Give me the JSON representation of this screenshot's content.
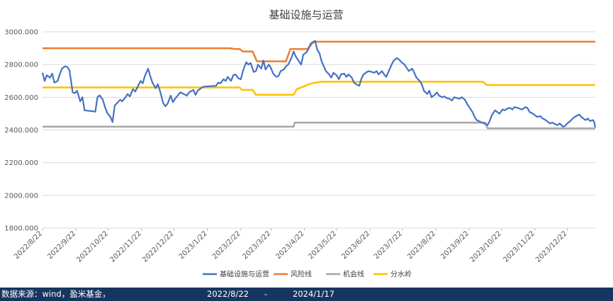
{
  "chart_data": {
    "type": "line",
    "title": "基础设施与运营",
    "ylim": [
      1800,
      3000
    ],
    "yticks": [
      "1800.000",
      "2000.000",
      "2200.000",
      "2400.000",
      "2600.000",
      "2800.000",
      "3000.000"
    ],
    "xticks": [
      "2022/8/22",
      "2022/9/22",
      "2022/10/22",
      "2022/11/22",
      "2022/12/22",
      "2023/1/22",
      "2023/2/22",
      "2023/3/22",
      "2023/4/22",
      "2023/5/22",
      "2023/6/22",
      "2023/7/22",
      "2023/8/22",
      "2023/9/22",
      "2023/10/22",
      "2023/11/22",
      "2023/12/22"
    ],
    "grid": true,
    "legend_position": "bottom",
    "series": [
      {
        "name": "基础设施与运营",
        "color": "#4472c4",
        "points": [
          [
            "2022-08-22",
            2750
          ],
          [
            "2022-08-24",
            2700
          ],
          [
            "2022-08-26",
            2735
          ],
          [
            "2022-08-29",
            2720
          ],
          [
            "2022-08-31",
            2745
          ],
          [
            "2022-09-02",
            2690
          ],
          [
            "2022-09-05",
            2700
          ],
          [
            "2022-09-07",
            2740
          ],
          [
            "2022-09-09",
            2775
          ],
          [
            "2022-09-12",
            2790
          ],
          [
            "2022-09-14",
            2785
          ],
          [
            "2022-09-16",
            2765
          ],
          [
            "2022-09-19",
            2630
          ],
          [
            "2022-09-21",
            2625
          ],
          [
            "2022-09-23",
            2640
          ],
          [
            "2022-09-26",
            2575
          ],
          [
            "2022-09-28",
            2600
          ],
          [
            "2022-09-30",
            2520
          ],
          [
            "2022-10-03",
            2518
          ],
          [
            "2022-10-07",
            2515
          ],
          [
            "2022-10-10",
            2512
          ],
          [
            "2022-10-12",
            2600
          ],
          [
            "2022-10-14",
            2612
          ],
          [
            "2022-10-17",
            2585
          ],
          [
            "2022-10-19",
            2540
          ],
          [
            "2022-10-21",
            2505
          ],
          [
            "2022-10-24",
            2480
          ],
          [
            "2022-10-26",
            2448
          ],
          [
            "2022-10-28",
            2550
          ],
          [
            "2022-10-31",
            2570
          ],
          [
            "2022-11-02",
            2585
          ],
          [
            "2022-11-04",
            2575
          ],
          [
            "2022-11-07",
            2600
          ],
          [
            "2022-11-09",
            2620
          ],
          [
            "2022-11-11",
            2605
          ],
          [
            "2022-11-14",
            2650
          ],
          [
            "2022-11-16",
            2635
          ],
          [
            "2022-11-18",
            2660
          ],
          [
            "2022-11-21",
            2700
          ],
          [
            "2022-11-23",
            2685
          ],
          [
            "2022-11-25",
            2730
          ],
          [
            "2022-11-28",
            2775
          ],
          [
            "2022-11-30",
            2730
          ],
          [
            "2022-12-02",
            2690
          ],
          [
            "2022-12-05",
            2655
          ],
          [
            "2022-12-07",
            2680
          ],
          [
            "2022-12-09",
            2640
          ],
          [
            "2022-12-12",
            2565
          ],
          [
            "2022-12-14",
            2545
          ],
          [
            "2022-12-16",
            2560
          ],
          [
            "2022-12-19",
            2610
          ],
          [
            "2022-12-21",
            2570
          ],
          [
            "2022-12-23",
            2590
          ],
          [
            "2022-12-26",
            2615
          ],
          [
            "2022-12-28",
            2630
          ],
          [
            "2023-01-03",
            2610
          ],
          [
            "2023-01-05",
            2630
          ],
          [
            "2023-01-09",
            2645
          ],
          [
            "2023-01-11",
            2615
          ],
          [
            "2023-01-13",
            2640
          ],
          [
            "2023-01-17",
            2660
          ],
          [
            "2023-01-19",
            2665
          ],
          [
            "2023-01-30",
            2670
          ],
          [
            "2023-02-01",
            2690
          ],
          [
            "2023-02-03",
            2685
          ],
          [
            "2023-02-06",
            2710
          ],
          [
            "2023-02-08",
            2700
          ],
          [
            "2023-02-10",
            2725
          ],
          [
            "2023-02-13",
            2700
          ],
          [
            "2023-02-15",
            2735
          ],
          [
            "2023-02-17",
            2740
          ],
          [
            "2023-02-20",
            2715
          ],
          [
            "2023-02-22",
            2710
          ],
          [
            "2023-02-24",
            2760
          ],
          [
            "2023-02-27",
            2815
          ],
          [
            "2023-03-01",
            2800
          ],
          [
            "2023-03-03",
            2810
          ],
          [
            "2023-03-06",
            2755
          ],
          [
            "2023-03-08",
            2760
          ],
          [
            "2023-03-10",
            2800
          ],
          [
            "2023-03-13",
            2775
          ],
          [
            "2023-03-15",
            2825
          ],
          [
            "2023-03-17",
            2770
          ],
          [
            "2023-03-20",
            2800
          ],
          [
            "2023-03-22",
            2780
          ],
          [
            "2023-03-24",
            2745
          ],
          [
            "2023-03-27",
            2725
          ],
          [
            "2023-03-29",
            2730
          ],
          [
            "2023-03-31",
            2760
          ],
          [
            "2023-04-03",
            2770
          ],
          [
            "2023-04-05",
            2790
          ],
          [
            "2023-04-07",
            2800
          ],
          [
            "2023-04-10",
            2840
          ],
          [
            "2023-04-12",
            2880
          ],
          [
            "2023-04-14",
            2850
          ],
          [
            "2023-04-17",
            2820
          ],
          [
            "2023-04-19",
            2800
          ],
          [
            "2023-04-21",
            2860
          ],
          [
            "2023-04-24",
            2875
          ],
          [
            "2023-04-26",
            2900
          ],
          [
            "2023-04-28",
            2930
          ],
          [
            "2023-05-02",
            2945
          ],
          [
            "2023-05-04",
            2890
          ],
          [
            "2023-05-06",
            2870
          ],
          [
            "2023-05-08",
            2820
          ],
          [
            "2023-05-10",
            2790
          ],
          [
            "2023-05-12",
            2760
          ],
          [
            "2023-05-15",
            2740
          ],
          [
            "2023-05-17",
            2720
          ],
          [
            "2023-05-19",
            2750
          ],
          [
            "2023-05-22",
            2735
          ],
          [
            "2023-05-24",
            2710
          ],
          [
            "2023-05-26",
            2740
          ],
          [
            "2023-05-29",
            2745
          ],
          [
            "2023-05-31",
            2725
          ],
          [
            "2023-06-02",
            2740
          ],
          [
            "2023-06-05",
            2720
          ],
          [
            "2023-06-07",
            2690
          ],
          [
            "2023-06-09",
            2680
          ],
          [
            "2023-06-12",
            2670
          ],
          [
            "2023-06-14",
            2715
          ],
          [
            "2023-06-16",
            2740
          ],
          [
            "2023-06-19",
            2755
          ],
          [
            "2023-06-21",
            2760
          ],
          [
            "2023-06-26",
            2750
          ],
          [
            "2023-06-28",
            2760
          ],
          [
            "2023-06-30",
            2740
          ],
          [
            "2023-07-03",
            2760
          ],
          [
            "2023-07-05",
            2740
          ],
          [
            "2023-07-07",
            2725
          ],
          [
            "2023-07-10",
            2770
          ],
          [
            "2023-07-12",
            2800
          ],
          [
            "2023-07-14",
            2825
          ],
          [
            "2023-07-17",
            2840
          ],
          [
            "2023-07-19",
            2830
          ],
          [
            "2023-07-21",
            2815
          ],
          [
            "2023-07-24",
            2800
          ],
          [
            "2023-07-26",
            2780
          ],
          [
            "2023-07-28",
            2760
          ],
          [
            "2023-07-31",
            2775
          ],
          [
            "2023-08-02",
            2750
          ],
          [
            "2023-08-04",
            2720
          ],
          [
            "2023-08-07",
            2700
          ],
          [
            "2023-08-09",
            2680
          ],
          [
            "2023-08-11",
            2640
          ],
          [
            "2023-08-14",
            2620
          ],
          [
            "2023-08-16",
            2640
          ],
          [
            "2023-08-18",
            2600
          ],
          [
            "2023-08-21",
            2615
          ],
          [
            "2023-08-23",
            2630
          ],
          [
            "2023-08-25",
            2610
          ],
          [
            "2023-08-28",
            2600
          ],
          [
            "2023-08-30",
            2605
          ],
          [
            "2023-09-01",
            2595
          ],
          [
            "2023-09-04",
            2590
          ],
          [
            "2023-09-06",
            2580
          ],
          [
            "2023-09-08",
            2600
          ],
          [
            "2023-09-11",
            2595
          ],
          [
            "2023-09-13",
            2590
          ],
          [
            "2023-09-15",
            2600
          ],
          [
            "2023-09-18",
            2585
          ],
          [
            "2023-09-20",
            2560
          ],
          [
            "2023-09-22",
            2540
          ],
          [
            "2023-09-25",
            2510
          ],
          [
            "2023-09-27",
            2480
          ],
          [
            "2023-09-29",
            2460
          ],
          [
            "2023-10-09",
            2430
          ],
          [
            "2023-10-11",
            2455
          ],
          [
            "2023-10-13",
            2490
          ],
          [
            "2023-10-16",
            2520
          ],
          [
            "2023-10-18",
            2510
          ],
          [
            "2023-10-20",
            2500
          ],
          [
            "2023-10-23",
            2525
          ],
          [
            "2023-10-25",
            2520
          ],
          [
            "2023-10-27",
            2530
          ],
          [
            "2023-10-30",
            2535
          ],
          [
            "2023-11-01",
            2525
          ],
          [
            "2023-11-03",
            2540
          ],
          [
            "2023-11-06",
            2535
          ],
          [
            "2023-11-08",
            2530
          ],
          [
            "2023-11-10",
            2525
          ],
          [
            "2023-11-13",
            2540
          ],
          [
            "2023-11-15",
            2535
          ],
          [
            "2023-11-17",
            2510
          ],
          [
            "2023-11-20",
            2500
          ],
          [
            "2023-11-22",
            2490
          ],
          [
            "2023-11-24",
            2480
          ],
          [
            "2023-11-27",
            2485
          ],
          [
            "2023-11-29",
            2470
          ],
          [
            "2023-12-01",
            2465
          ],
          [
            "2023-12-04",
            2450
          ],
          [
            "2023-12-06",
            2440
          ],
          [
            "2023-12-08",
            2445
          ],
          [
            "2023-12-11",
            2435
          ],
          [
            "2023-12-13",
            2430
          ],
          [
            "2023-12-15",
            2440
          ],
          [
            "2023-12-18",
            2420
          ],
          [
            "2023-12-20",
            2425
          ],
          [
            "2023-12-22",
            2440
          ],
          [
            "2023-12-25",
            2455
          ],
          [
            "2023-12-27",
            2470
          ],
          [
            "2023-12-29",
            2480
          ],
          [
            "2024-01-02",
            2495
          ],
          [
            "2024-01-04",
            2480
          ],
          [
            "2024-01-08",
            2460
          ],
          [
            "2024-01-10",
            2470
          ],
          [
            "2024-01-12",
            2455
          ],
          [
            "2024-01-15",
            2460
          ],
          [
            "2024-01-16",
            2448
          ],
          [
            "2024-01-17",
            2415
          ]
        ]
      },
      {
        "name": "风险线",
        "color": "#ed7d31",
        "points": [
          [
            "2022-08-22",
            2900
          ],
          [
            "2023-02-12",
            2900
          ],
          [
            "2023-02-16",
            2895
          ],
          [
            "2023-02-21",
            2895
          ],
          [
            "2023-02-24",
            2880
          ],
          [
            "2023-03-05",
            2880
          ],
          [
            "2023-03-09",
            2820
          ],
          [
            "2023-04-05",
            2820
          ],
          [
            "2023-04-09",
            2895
          ],
          [
            "2023-04-25",
            2895
          ],
          [
            "2023-04-30",
            2935
          ],
          [
            "2023-05-03",
            2940
          ],
          [
            "2024-01-17",
            2940
          ]
        ]
      },
      {
        "name": "机会线",
        "color": "#a5a5a5",
        "points": [
          [
            "2022-08-22",
            2420
          ],
          [
            "2023-04-12",
            2420
          ],
          [
            "2023-04-13",
            2445
          ],
          [
            "2023-10-07",
            2445
          ],
          [
            "2023-10-09",
            2410
          ],
          [
            "2024-01-17",
            2410
          ]
        ]
      },
      {
        "name": "分水岭",
        "color": "#ffc000",
        "points": [
          [
            "2022-08-22",
            2660
          ],
          [
            "2023-02-21",
            2660
          ],
          [
            "2023-02-23",
            2645
          ],
          [
            "2023-03-05",
            2645
          ],
          [
            "2023-03-08",
            2615
          ],
          [
            "2023-04-12",
            2615
          ],
          [
            "2023-04-15",
            2650
          ],
          [
            "2023-04-21",
            2665
          ],
          [
            "2023-04-26",
            2680
          ],
          [
            "2023-05-02",
            2690
          ],
          [
            "2023-05-08",
            2695
          ],
          [
            "2023-10-05",
            2695
          ],
          [
            "2023-10-08",
            2675
          ],
          [
            "2024-01-17",
            2675
          ]
        ]
      }
    ]
  },
  "footer": {
    "source": "数据来源：wind，盈米基金，",
    "start_date": "2022/8/22",
    "separator": "-",
    "end_date": "2024/1/17"
  }
}
